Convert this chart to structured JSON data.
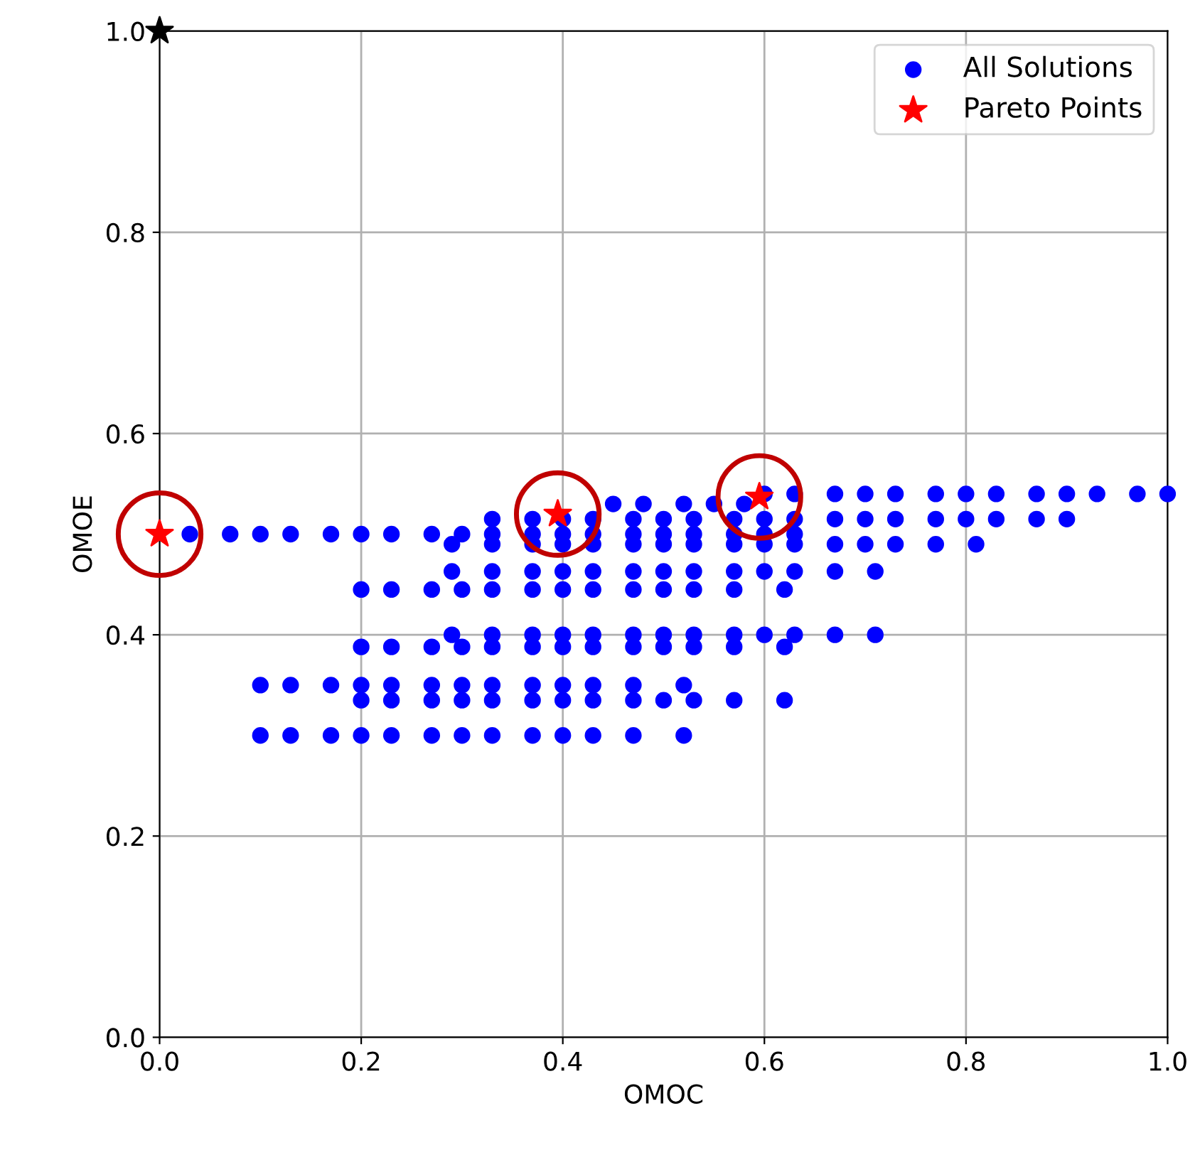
{
  "chart_data": {
    "type": "scatter",
    "xlabel": "OMOC",
    "ylabel": "OMOE",
    "xlim": [
      0,
      1
    ],
    "ylim": [
      0,
      1
    ],
    "xticks": [
      {
        "value": 0,
        "label": "0.0"
      },
      {
        "value": 0.2,
        "label": "0.2"
      },
      {
        "value": 0.4,
        "label": "0.4"
      },
      {
        "value": 0.6,
        "label": "0.6"
      },
      {
        "value": 0.8,
        "label": "0.8"
      },
      {
        "value": 1,
        "label": "1.0"
      }
    ],
    "yticks": [
      {
        "value": 0,
        "label": "0.0"
      },
      {
        "value": 0.2,
        "label": "0.2"
      },
      {
        "value": 0.4,
        "label": "0.4"
      },
      {
        "value": 0.6,
        "label": "0.6"
      },
      {
        "value": 0.8,
        "label": "0.8"
      },
      {
        "value": 1,
        "label": "1.0"
      }
    ],
    "grid": true,
    "legend": "top right",
    "series": [
      {
        "name": "All Solutions",
        "color": "#0000ff",
        "marker": "circle",
        "x": [
          0.03,
          0.07,
          0.1,
          0.13,
          0.17,
          0.2,
          0.23,
          0.27,
          0.3,
          0.33,
          0.37,
          0.4,
          0.43,
          0.47,
          0.5,
          0.53,
          0.57,
          0.6,
          0.63,
          0.6,
          0.63,
          0.67,
          0.7,
          0.73,
          0.77,
          0.8,
          0.83,
          0.87,
          0.9,
          0.93,
          0.97,
          1.0,
          0.45,
          0.48,
          0.52,
          0.55,
          0.58,
          0.33,
          0.37,
          0.4,
          0.43,
          0.47,
          0.5,
          0.53,
          0.57,
          0.6,
          0.63,
          0.67,
          0.7,
          0.73,
          0.77,
          0.8,
          0.83,
          0.87,
          0.9,
          0.29,
          0.33,
          0.37,
          0.4,
          0.43,
          0.47,
          0.5,
          0.53,
          0.57,
          0.6,
          0.63,
          0.67,
          0.7,
          0.73,
          0.77,
          0.81,
          0.29,
          0.33,
          0.37,
          0.4,
          0.43,
          0.47,
          0.5,
          0.53,
          0.57,
          0.6,
          0.63,
          0.67,
          0.71,
          0.2,
          0.23,
          0.27,
          0.3,
          0.33,
          0.37,
          0.4,
          0.43,
          0.47,
          0.5,
          0.53,
          0.57,
          0.62,
          0.29,
          0.33,
          0.37,
          0.4,
          0.43,
          0.47,
          0.5,
          0.53,
          0.57,
          0.6,
          0.63,
          0.67,
          0.71,
          0.2,
          0.23,
          0.27,
          0.3,
          0.33,
          0.37,
          0.4,
          0.43,
          0.47,
          0.5,
          0.53,
          0.57,
          0.62,
          0.1,
          0.13,
          0.17,
          0.2,
          0.23,
          0.27,
          0.3,
          0.33,
          0.37,
          0.4,
          0.43,
          0.47,
          0.52,
          0.2,
          0.23,
          0.27,
          0.3,
          0.33,
          0.37,
          0.4,
          0.43,
          0.47,
          0.5,
          0.53,
          0.57,
          0.62,
          0.1,
          0.13,
          0.17,
          0.2,
          0.23,
          0.27,
          0.3,
          0.33,
          0.37,
          0.4,
          0.43,
          0.47,
          0.52
        ],
        "values": [
          0.5,
          0.5,
          0.5,
          0.5,
          0.5,
          0.5,
          0.5,
          0.5,
          0.5,
          0.5,
          0.5,
          0.5,
          0.5,
          0.5,
          0.5,
          0.5,
          0.5,
          0.5,
          0.5,
          0.54,
          0.54,
          0.54,
          0.54,
          0.54,
          0.54,
          0.54,
          0.54,
          0.54,
          0.54,
          0.54,
          0.54,
          0.54,
          0.53,
          0.53,
          0.53,
          0.53,
          0.53,
          0.515,
          0.515,
          0.515,
          0.515,
          0.515,
          0.515,
          0.515,
          0.515,
          0.515,
          0.515,
          0.515,
          0.515,
          0.515,
          0.515,
          0.515,
          0.515,
          0.515,
          0.515,
          0.49,
          0.49,
          0.49,
          0.49,
          0.49,
          0.49,
          0.49,
          0.49,
          0.49,
          0.49,
          0.49,
          0.49,
          0.49,
          0.49,
          0.49,
          0.49,
          0.463,
          0.463,
          0.463,
          0.463,
          0.463,
          0.463,
          0.463,
          0.463,
          0.463,
          0.463,
          0.463,
          0.463,
          0.463,
          0.445,
          0.445,
          0.445,
          0.445,
          0.445,
          0.445,
          0.445,
          0.445,
          0.445,
          0.445,
          0.445,
          0.445,
          0.445,
          0.4,
          0.4,
          0.4,
          0.4,
          0.4,
          0.4,
          0.4,
          0.4,
          0.4,
          0.4,
          0.4,
          0.4,
          0.4,
          0.388,
          0.388,
          0.388,
          0.388,
          0.388,
          0.388,
          0.388,
          0.388,
          0.388,
          0.388,
          0.388,
          0.388,
          0.388,
          0.35,
          0.35,
          0.35,
          0.35,
          0.35,
          0.35,
          0.35,
          0.35,
          0.35,
          0.35,
          0.35,
          0.35,
          0.35,
          0.335,
          0.335,
          0.335,
          0.335,
          0.335,
          0.335,
          0.335,
          0.335,
          0.335,
          0.335,
          0.335,
          0.335,
          0.335,
          0.3,
          0.3,
          0.3,
          0.3,
          0.3,
          0.3,
          0.3,
          0.3,
          0.3,
          0.3,
          0.3,
          0.3,
          0.3
        ]
      },
      {
        "name": "Pareto Points",
        "color": "#ff0000",
        "marker": "star",
        "x": [
          0,
          0.395,
          0.595
        ],
        "values": [
          0.5,
          0.52,
          0.537
        ]
      },
      {
        "color": "#000000",
        "marker": "star",
        "x": [
          0
        ],
        "values": [
          1.0
        ]
      }
    ]
  }
}
